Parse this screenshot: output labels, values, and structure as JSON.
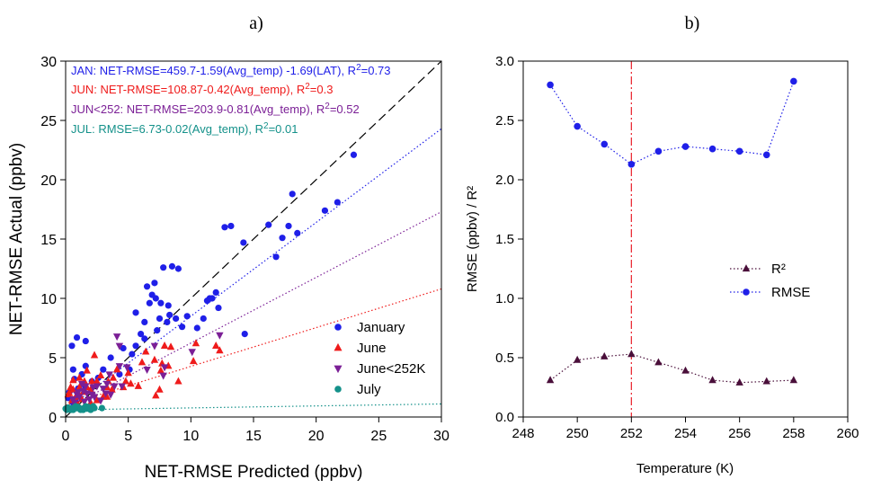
{
  "panel_labels": [
    "a)",
    "b)"
  ],
  "colors": {
    "january": "#1f1fe8",
    "june": "#ef1b1b",
    "june252": "#7b1f96",
    "july": "#14918a",
    "r2": "#4a0f3a",
    "rmse": "#1f1fe8",
    "vline": "#e8202a",
    "oneToOne": "#000000"
  },
  "chart_data": [
    {
      "type": "scatter",
      "panel": "a)",
      "xlabel": "NET-RMSE Predicted (ppbv)",
      "ylabel": "NET-RMSE Actual (ppbv)",
      "xlim": [
        0,
        30
      ],
      "ylim": [
        0,
        30
      ],
      "xticks": [
        "0",
        "5",
        "10",
        "15",
        "20",
        "25",
        "30"
      ],
      "yticks": [
        "0",
        "5",
        "10",
        "15",
        "20",
        "25",
        "30"
      ],
      "grid": false,
      "legend_position": "bottom-right",
      "annotations": [
        {
          "key": "jan",
          "parts": [
            "JAN: NET-RMSE=459.7-1.59(Avg_temp) -1.69(LAT), R",
            "2",
            "=0.73"
          ]
        },
        {
          "key": "jun",
          "parts": [
            "JUN: NET-RMSE=108.87-0.42(Avg_temp), R",
            "2",
            "=0.3"
          ]
        },
        {
          "key": "june252",
          "parts": [
            "JUN<252: NET-RMSE=203.9-0.81(Avg_temp), R",
            "2",
            "=0.52"
          ]
        },
        {
          "key": "july",
          "parts": [
            "JUL: RMSE=6.73-0.02(Avg_temp), R",
            "2",
            "=0.01"
          ]
        }
      ],
      "fit_lines": [
        {
          "key": "january",
          "x": [
            0,
            30
          ],
          "y": [
            0.6,
            24.3
          ]
        },
        {
          "key": "june",
          "x": [
            0,
            30
          ],
          "y": [
            1.0,
            10.8
          ]
        },
        {
          "key": "june252",
          "x": [
            0,
            30
          ],
          "y": [
            0.7,
            17.3
          ]
        },
        {
          "key": "july",
          "x": [
            0,
            30
          ],
          "y": [
            0.6,
            1.1
          ]
        }
      ],
      "one_to_one": {
        "x": [
          0,
          30
        ],
        "y": [
          0,
          30
        ]
      },
      "series": [
        {
          "name": "January",
          "key": "january",
          "marker": "circle",
          "points": [
            [
              23,
              22.1
            ],
            [
              21.7,
              18.1
            ],
            [
              20.7,
              17.4
            ],
            [
              18.5,
              15.5
            ],
            [
              18.1,
              18.8
            ],
            [
              17.8,
              16.1
            ],
            [
              17.3,
              15.1
            ],
            [
              16.2,
              16.2
            ],
            [
              16.8,
              13.5
            ],
            [
              14.2,
              14.7
            ],
            [
              13.2,
              16.1
            ],
            [
              12.7,
              16.0
            ],
            [
              14.3,
              7.0
            ],
            [
              12.0,
              10.5
            ],
            [
              11.7,
              10.0
            ],
            [
              11.3,
              9.8
            ],
            [
              12.2,
              9.2
            ],
            [
              11.0,
              8.3
            ],
            [
              10.5,
              7.5
            ],
            [
              9.7,
              8.5
            ],
            [
              9.3,
              7.6
            ],
            [
              8.8,
              8.3
            ],
            [
              8.2,
              9.4
            ],
            [
              8.3,
              8.6
            ],
            [
              8.1,
              8.0
            ],
            [
              7.5,
              8.3
            ],
            [
              7.2,
              10.0
            ],
            [
              7.1,
              11.3
            ],
            [
              7.8,
              12.6
            ],
            [
              7.6,
              9.6
            ],
            [
              6.5,
              11.0
            ],
            [
              6.9,
              10.3
            ],
            [
              6.7,
              9.6
            ],
            [
              6.3,
              8.0
            ],
            [
              6.0,
              7.0
            ],
            [
              5.6,
              6.0
            ],
            [
              5.3,
              5.3
            ],
            [
              4.6,
              5.8
            ],
            [
              5.1,
              4.0
            ],
            [
              4.3,
              3.6
            ],
            [
              3.6,
              5.0
            ],
            [
              3.0,
              4.0
            ],
            [
              2.6,
              3.3
            ],
            [
              2.1,
              3.0
            ],
            [
              1.6,
              4.3
            ],
            [
              1.3,
              3.6
            ],
            [
              1.0,
              2.4
            ],
            [
              0.6,
              4.0
            ],
            [
              0.7,
              3.2
            ],
            [
              0.9,
              6.7
            ],
            [
              0.5,
              6.0
            ],
            [
              1.6,
              6.4
            ],
            [
              0.3,
              2.1
            ],
            [
              0.2,
              1.6
            ],
            [
              1.6,
              2.5
            ],
            [
              9.0,
              12.5
            ],
            [
              8.5,
              12.7
            ],
            [
              11.5,
              10.0
            ],
            [
              7.3,
              7.3
            ],
            [
              5.6,
              8.8
            ],
            [
              6.3,
              6.6
            ],
            [
              0.6,
              1.2
            ],
            [
              0.8,
              1.3
            ]
          ]
        },
        {
          "name": "June",
          "key": "june",
          "marker": "triangle-up",
          "points": [
            [
              12.3,
              5.6
            ],
            [
              10.4,
              6.2
            ],
            [
              10.2,
              4.7
            ],
            [
              8.2,
              4.3
            ],
            [
              7.9,
              6.0
            ],
            [
              7.7,
              4.5
            ],
            [
              7.1,
              4.8
            ],
            [
              7.5,
              2.3
            ],
            [
              5.0,
              3.7
            ],
            [
              4.8,
              3.0
            ],
            [
              4.6,
              2.5
            ],
            [
              4.1,
              4.0
            ],
            [
              3.8,
              3.3
            ],
            [
              3.7,
              2.3
            ],
            [
              3.4,
              3.0
            ],
            [
              3.3,
              2.5
            ],
            [
              3.3,
              1.7
            ],
            [
              2.8,
              3.5
            ],
            [
              2.5,
              3.0
            ],
            [
              2.1,
              3.0
            ],
            [
              2.0,
              2.3
            ],
            [
              1.7,
              2.5
            ],
            [
              1.5,
              3.0
            ],
            [
              1.4,
              2.1
            ],
            [
              1.1,
              2.5
            ],
            [
              1.0,
              2.0
            ],
            [
              0.8,
              1.7
            ],
            [
              0.6,
              2.3
            ],
            [
              0.4,
              2.5
            ],
            [
              0.2,
              1.9
            ],
            [
              0.3,
              2.0
            ],
            [
              0.5,
              1.4
            ],
            [
              1.0,
              1.0
            ],
            [
              1.5,
              0.9
            ],
            [
              2.0,
              1.2
            ],
            [
              2.5,
              1.4
            ],
            [
              3.0,
              1.7
            ],
            [
              0.6,
              3.1
            ],
            [
              1.1,
              3.3
            ],
            [
              1.7,
              3.9
            ],
            [
              2.3,
              5.2
            ],
            [
              0.8,
              1.2
            ],
            [
              1.3,
              1.5
            ],
            [
              5.8,
              2.6
            ],
            [
              7.2,
              1.8
            ],
            [
              9.0,
              3.0
            ],
            [
              5.2,
              2.8
            ],
            [
              6.1,
              4.6
            ],
            [
              7.6,
              3.9
            ],
            [
              8.4,
              5.9
            ],
            [
              12.0,
              6.0
            ],
            [
              6.4,
              5.5
            ]
          ]
        },
        {
          "name": "June<252K",
          "key": "june252",
          "marker": "triangle-down",
          "points": [
            [
              12.3,
              6.9
            ],
            [
              10.1,
              5.5
            ],
            [
              7.8,
              3.5
            ],
            [
              7.9,
              4.2
            ],
            [
              7.1,
              6.0
            ],
            [
              6.5,
              4.0
            ],
            [
              4.9,
              4.2
            ],
            [
              4.5,
              2.6
            ],
            [
              4.3,
              4.3
            ],
            [
              4.1,
              6.8
            ],
            [
              3.9,
              2.6
            ],
            [
              3.6,
              1.9
            ],
            [
              3.5,
              3.6
            ],
            [
              3.3,
              2.8
            ],
            [
              3.2,
              2.0
            ],
            [
              3.0,
              2.4
            ],
            [
              2.8,
              1.4
            ],
            [
              2.5,
              2.6
            ],
            [
              2.3,
              1.7
            ],
            [
              2.1,
              1.9
            ],
            [
              1.9,
              1.5
            ],
            [
              1.7,
              2.0
            ],
            [
              1.5,
              1.3
            ],
            [
              1.4,
              2.2
            ],
            [
              1.3,
              2.8
            ],
            [
              1.1,
              1.7
            ],
            [
              0.9,
              1.9
            ],
            [
              0.7,
              1.2
            ],
            [
              0.6,
              1.5
            ],
            [
              4.3,
              6.0
            ],
            [
              1.0,
              2.1
            ],
            [
              1.6,
              2.6
            ],
            [
              2.2,
              2.5
            ]
          ]
        },
        {
          "name": "July",
          "key": "july",
          "marker": "circle",
          "points": [
            [
              0.0,
              0.7
            ],
            [
              0.3,
              0.7
            ],
            [
              0.5,
              0.75
            ],
            [
              0.7,
              0.7
            ],
            [
              0.9,
              0.75
            ],
            [
              1.1,
              0.7
            ],
            [
              1.3,
              0.7
            ],
            [
              1.5,
              0.75
            ],
            [
              1.7,
              0.7
            ],
            [
              1.9,
              0.75
            ],
            [
              2.1,
              0.7
            ],
            [
              2.3,
              0.75
            ],
            [
              2.9,
              0.75
            ],
            [
              0.2,
              0.8
            ],
            [
              0.6,
              0.6
            ],
            [
              1.0,
              0.85
            ],
            [
              1.4,
              0.6
            ],
            [
              1.8,
              0.85
            ],
            [
              0.4,
              0.6
            ],
            [
              0.8,
              0.9
            ],
            [
              1.2,
              0.6
            ],
            [
              1.6,
              0.9
            ],
            [
              2.0,
              0.6
            ],
            [
              2.2,
              0.9
            ],
            [
              0.1,
              0.6
            ]
          ]
        }
      ]
    },
    {
      "type": "line",
      "panel": "b)",
      "xlabel": "Temperature (K)",
      "ylabel": "RMSE (ppbv) / R²",
      "xlim": [
        248,
        260
      ],
      "ylim": [
        0,
        3
      ],
      "xticks": [
        "248",
        "250",
        "252",
        "254",
        "256",
        "258",
        "260"
      ],
      "yticks": [
        "0.0",
        "0.5",
        "1.0",
        "1.5",
        "2.0",
        "2.5",
        "3.0"
      ],
      "grid": false,
      "legend_position": "center-right",
      "vline_x": 252,
      "x": [
        249,
        250,
        251,
        252,
        253,
        254,
        255,
        256,
        257,
        258
      ],
      "series": [
        {
          "name": "R²",
          "key": "r2",
          "marker": "triangle-up",
          "values": [
            0.31,
            0.48,
            0.51,
            0.53,
            0.46,
            0.39,
            0.31,
            0.29,
            0.3,
            0.31
          ]
        },
        {
          "name": "RMSE",
          "key": "rmse",
          "marker": "circle",
          "values": [
            2.8,
            2.45,
            2.3,
            2.13,
            2.24,
            2.28,
            2.26,
            2.24,
            2.21,
            2.83
          ]
        }
      ]
    }
  ]
}
